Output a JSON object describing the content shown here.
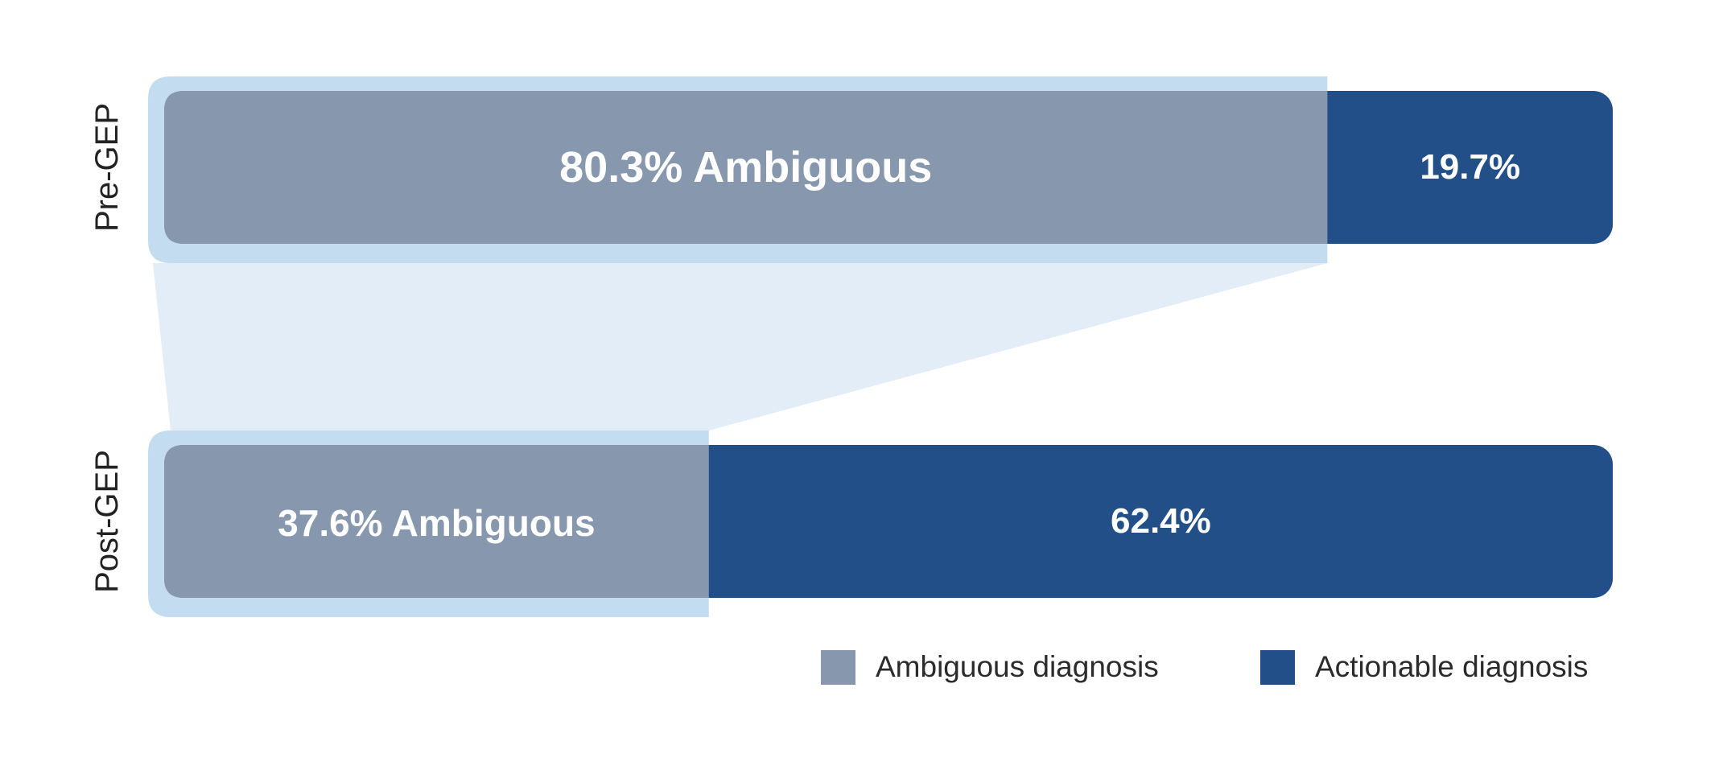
{
  "chart_data": {
    "type": "bar",
    "orientation": "horizontal",
    "stacked": true,
    "normalized_percent": true,
    "categories": [
      "Pre-GEP",
      "Post-GEP"
    ],
    "series": [
      {
        "name": "Ambiguous diagnosis",
        "values": [
          80.3,
          37.6
        ],
        "labels": [
          "80.3% Ambiguous",
          "37.6% Ambiguous"
        ],
        "color": "#8798ae"
      },
      {
        "name": "Actionable diagnosis",
        "values": [
          19.7,
          62.4
        ],
        "labels": [
          "19.7%",
          "62.4%"
        ],
        "color": "#224f87"
      }
    ],
    "highlight": {
      "series": "Ambiguous diagnosis",
      "outline_color": "#c4dcf0",
      "connector_color": "#e2edf7"
    },
    "xlim": [
      0,
      100
    ],
    "legend": {
      "position": "bottom-right",
      "items": [
        "Ambiguous diagnosis",
        "Actionable diagnosis"
      ]
    },
    "grid": false
  }
}
